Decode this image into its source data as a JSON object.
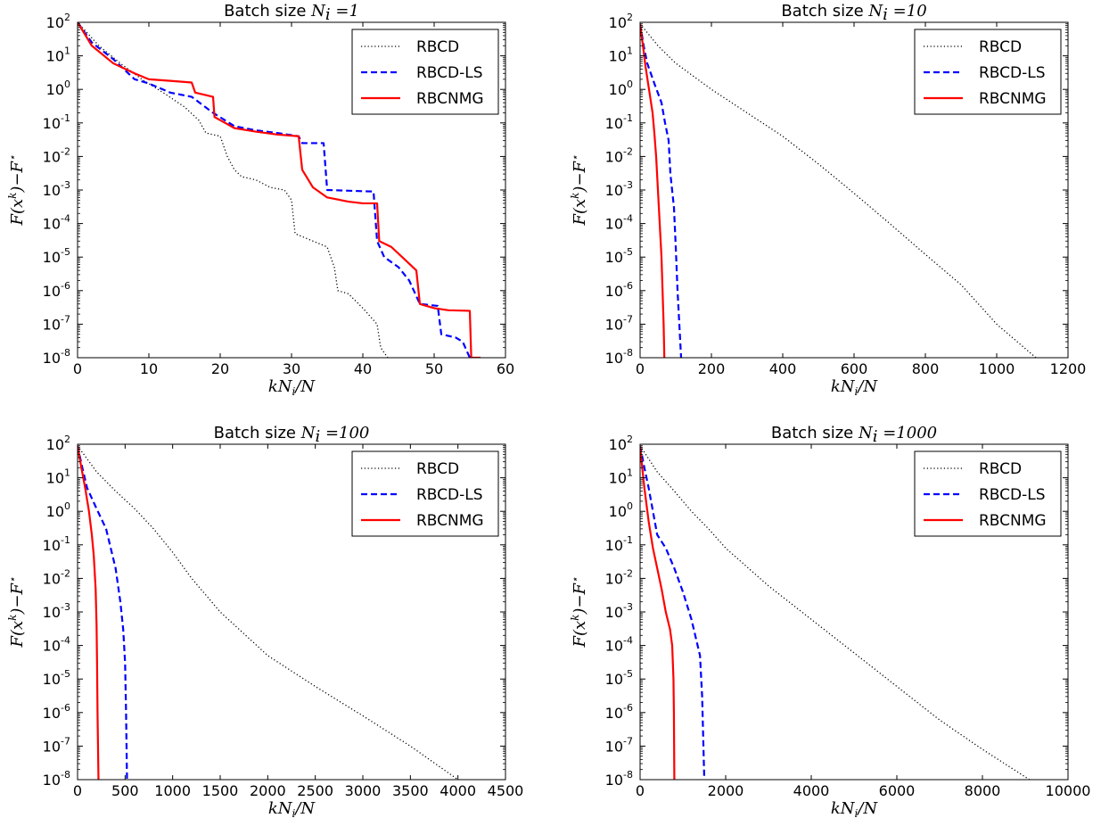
{
  "chart_data": [
    {
      "type": "line",
      "title": "Batch size",
      "title_math": "Ni=1",
      "xlabel": "kNi/N",
      "ylabel": "F(x^k)-F*",
      "xlim": [
        0,
        60
      ],
      "ylim_exp": [
        -8,
        2
      ],
      "yscale": "log",
      "xticks": [
        "0",
        "10",
        "20",
        "30",
        "40",
        "50",
        "60"
      ],
      "xtick_values": [
        0,
        10,
        20,
        30,
        40,
        50,
        60
      ],
      "legend_position": "top-right",
      "series": [
        {
          "name": "RBCD",
          "style": "dotted",
          "color": "#000000",
          "points": [
            [
              0,
              100
            ],
            [
              3,
              20
            ],
            [
              6,
              6
            ],
            [
              9,
              2
            ],
            [
              12,
              0.8
            ],
            [
              15,
              0.3
            ],
            [
              17,
              0.12
            ],
            [
              18,
              0.05
            ],
            [
              20,
              0.04
            ],
            [
              21,
              0.01
            ],
            [
              22,
              0.004
            ],
            [
              23,
              0.0025
            ],
            [
              25,
              0.002
            ],
            [
              27,
              0.0012
            ],
            [
              29,
              0.001
            ],
            [
              30,
              0.0005
            ],
            [
              30.5,
              5e-05
            ],
            [
              33,
              3e-05
            ],
            [
              35,
              2e-05
            ],
            [
              36,
              5e-06
            ],
            [
              36.5,
              1e-06
            ],
            [
              38,
              8e-07
            ],
            [
              40,
              3e-07
            ],
            [
              42,
              1e-07
            ],
            [
              42.5,
              2e-08
            ],
            [
              43.5,
              1e-08
            ]
          ]
        },
        {
          "name": "RBCD-LS",
          "style": "dashed",
          "color": "#0000ff",
          "points": [
            [
              0,
              100
            ],
            [
              2,
              25
            ],
            [
              5,
              8
            ],
            [
              8,
              2
            ],
            [
              10,
              1.5
            ],
            [
              13,
              0.8
            ],
            [
              16,
              0.6
            ],
            [
              19,
              0.2
            ],
            [
              22,
              0.08
            ],
            [
              25,
              0.06
            ],
            [
              28,
              0.05
            ],
            [
              31,
              0.04
            ],
            [
              31.5,
              0.025
            ],
            [
              34.5,
              0.025
            ],
            [
              35,
              0.001
            ],
            [
              41.5,
              0.0009
            ],
            [
              42,
              3e-05
            ],
            [
              43,
              1e-05
            ],
            [
              45,
              5e-06
            ],
            [
              46.5,
              2e-06
            ],
            [
              48,
              4e-07
            ],
            [
              50.5,
              3.5e-07
            ],
            [
              51,
              5e-08
            ],
            [
              53,
              4e-08
            ],
            [
              54,
              3e-08
            ],
            [
              55,
              1e-08
            ]
          ]
        },
        {
          "name": "RBCNMG",
          "style": "solid",
          "color": "#ff0000",
          "points": [
            [
              0,
              100
            ],
            [
              2,
              20
            ],
            [
              5,
              6
            ],
            [
              8,
              3
            ],
            [
              10,
              2
            ],
            [
              13,
              1.8
            ],
            [
              16,
              1.6
            ],
            [
              16.5,
              0.8
            ],
            [
              19,
              0.6
            ],
            [
              19.2,
              0.15
            ],
            [
              22,
              0.07
            ],
            [
              25,
              0.055
            ],
            [
              28,
              0.045
            ],
            [
              31,
              0.04
            ],
            [
              31.5,
              0.004
            ],
            [
              33,
              0.0012
            ],
            [
              35,
              0.0006
            ],
            [
              38,
              0.00045
            ],
            [
              40,
              0.0004
            ],
            [
              42,
              0.0004
            ],
            [
              42.3,
              3e-05
            ],
            [
              44,
              2e-05
            ],
            [
              46,
              8e-06
            ],
            [
              47.5,
              4e-06
            ],
            [
              48,
              4e-07
            ],
            [
              50,
              3e-07
            ],
            [
              52,
              2.6e-07
            ],
            [
              55,
              2.5e-07
            ],
            [
              55.2,
              1e-08
            ],
            [
              56.5,
              1e-08
            ]
          ]
        }
      ]
    },
    {
      "type": "line",
      "title": "Batch size",
      "title_math": "Ni=10",
      "xlabel": "kNi/N",
      "ylabel": "F(x^k)-F*",
      "xlim": [
        0,
        1200
      ],
      "ylim_exp": [
        -8,
        2
      ],
      "yscale": "log",
      "xticks": [
        "0",
        "200",
        "400",
        "600",
        "800",
        "1000",
        "1200"
      ],
      "xtick_values": [
        0,
        200,
        400,
        600,
        800,
        1000,
        1200
      ],
      "legend_position": "top-right",
      "series": [
        {
          "name": "RBCD",
          "style": "dotted",
          "color": "#000000",
          "points": [
            [
              0,
              90
            ],
            [
              50,
              20
            ],
            [
              100,
              6
            ],
            [
              200,
              1
            ],
            [
              300,
              0.2
            ],
            [
              400,
              0.04
            ],
            [
              500,
              0.006
            ],
            [
              600,
              0.0008
            ],
            [
              700,
              0.0001
            ],
            [
              800,
              1.2e-05
            ],
            [
              900,
              1.5e-06
            ],
            [
              1000,
              1e-07
            ],
            [
              1110,
              1e-08
            ]
          ]
        },
        {
          "name": "RBCD-LS",
          "style": "dashed",
          "color": "#0000ff",
          "points": [
            [
              0,
              90
            ],
            [
              10,
              20
            ],
            [
              20,
              6
            ],
            [
              40,
              1.5
            ],
            [
              60,
              0.4
            ],
            [
              70,
              0.1
            ],
            [
              80,
              0.03
            ],
            [
              85,
              0.003
            ],
            [
              95,
              0.0003
            ],
            [
              100,
              2e-05
            ],
            [
              105,
              1e-06
            ],
            [
              110,
              1e-07
            ],
            [
              115,
              1e-08
            ]
          ]
        },
        {
          "name": "RBCNMG",
          "style": "solid",
          "color": "#ff0000",
          "points": [
            [
              0,
              90
            ],
            [
              8,
              20
            ],
            [
              15,
              5
            ],
            [
              25,
              1
            ],
            [
              35,
              0.2
            ],
            [
              40,
              0.05
            ],
            [
              45,
              0.01
            ],
            [
              50,
              0.001
            ],
            [
              55,
              0.0001
            ],
            [
              60,
              1e-05
            ],
            [
              63,
              1e-06
            ],
            [
              66,
              1e-07
            ],
            [
              68,
              1e-08
            ]
          ]
        }
      ]
    },
    {
      "type": "line",
      "title": "Batch size",
      "title_math": "Ni=100",
      "xlabel": "kNi/N",
      "ylabel": "F(x^k)-F*",
      "xlim": [
        0,
        4500
      ],
      "ylim_exp": [
        -8,
        2
      ],
      "yscale": "log",
      "xticks": [
        "0",
        "500",
        "1000",
        "1500",
        "2000",
        "2500",
        "3000",
        "3500",
        "4000",
        "4500"
      ],
      "xtick_values": [
        0,
        500,
        1000,
        1500,
        2000,
        2500,
        3000,
        3500,
        4000,
        4500
      ],
      "legend_position": "top-right",
      "series": [
        {
          "name": "RBCD",
          "style": "dotted",
          "color": "#000000",
          "points": [
            [
              0,
              90
            ],
            [
              200,
              15
            ],
            [
              400,
              4
            ],
            [
              600,
              1.2
            ],
            [
              800,
              0.3
            ],
            [
              1000,
              0.06
            ],
            [
              1200,
              0.01
            ],
            [
              1500,
              0.001
            ],
            [
              2000,
              5e-05
            ],
            [
              2500,
              6e-06
            ],
            [
              3000,
              8e-07
            ],
            [
              3500,
              1e-07
            ],
            [
              4000,
              1e-08
            ]
          ]
        },
        {
          "name": "RBCD-LS",
          "style": "dashed",
          "color": "#0000ff",
          "points": [
            [
              0,
              90
            ],
            [
              50,
              20
            ],
            [
              100,
              5
            ],
            [
              200,
              1.2
            ],
            [
              300,
              0.3
            ],
            [
              400,
              0.02
            ],
            [
              450,
              0.002
            ],
            [
              480,
              0.0003
            ],
            [
              500,
              3e-05
            ],
            [
              510,
              1e-06
            ],
            [
              515,
              1e-07
            ],
            [
              520,
              1e-08
            ]
          ]
        },
        {
          "name": "RBCNMG",
          "style": "solid",
          "color": "#ff0000",
          "points": [
            [
              0,
              90
            ],
            [
              40,
              20
            ],
            [
              80,
              5
            ],
            [
              120,
              1
            ],
            [
              150,
              0.2
            ],
            [
              170,
              0.05
            ],
            [
              190,
              0.005
            ],
            [
              200,
              0.0004
            ],
            [
              205,
              3e-05
            ],
            [
              210,
              1e-06
            ],
            [
              215,
              1e-07
            ],
            [
              220,
              1e-08
            ]
          ]
        }
      ]
    },
    {
      "type": "line",
      "title": "Batch size",
      "title_math": "Ni=1000",
      "xlabel": "kNi/N",
      "ylabel": "F(x^k)-F*",
      "xlim": [
        0,
        10000
      ],
      "ylim_exp": [
        -8,
        2
      ],
      "yscale": "log",
      "xticks": [
        "0",
        "2000",
        "4000",
        "6000",
        "8000",
        "10000"
      ],
      "xtick_values": [
        0,
        2000,
        4000,
        6000,
        8000,
        10000
      ],
      "legend_position": "top-right",
      "series": [
        {
          "name": "RBCD",
          "style": "dotted",
          "color": "#000000",
          "points": [
            [
              0,
              90
            ],
            [
              400,
              15
            ],
            [
              800,
              4
            ],
            [
              1200,
              1
            ],
            [
              1600,
              0.3
            ],
            [
              2000,
              0.08
            ],
            [
              3000,
              0.006
            ],
            [
              4000,
              0.0006
            ],
            [
              5000,
              6e-05
            ],
            [
              6000,
              6e-06
            ],
            [
              7000,
              6e-07
            ],
            [
              8000,
              8e-08
            ],
            [
              9100,
              1e-08
            ]
          ]
        },
        {
          "name": "RBCD-LS",
          "style": "dashed",
          "color": "#0000ff",
          "points": [
            [
              0,
              90
            ],
            [
              100,
              20
            ],
            [
              200,
              5
            ],
            [
              300,
              1
            ],
            [
              400,
              0.2
            ],
            [
              600,
              0.08
            ],
            [
              800,
              0.02
            ],
            [
              1000,
              0.004
            ],
            [
              1200,
              0.0006
            ],
            [
              1400,
              5e-05
            ],
            [
              1450,
              3e-06
            ],
            [
              1480,
              1e-07
            ],
            [
              1500,
              1e-08
            ]
          ]
        },
        {
          "name": "RBCNMG",
          "style": "solid",
          "color": "#ff0000",
          "points": [
            [
              0,
              90
            ],
            [
              50,
              20
            ],
            [
              100,
              5
            ],
            [
              200,
              0.5
            ],
            [
              300,
              0.08
            ],
            [
              400,
              0.02
            ],
            [
              500,
              0.005
            ],
            [
              600,
              0.001
            ],
            [
              700,
              0.0003
            ],
            [
              750,
              0.0001
            ],
            [
              780,
              1e-05
            ],
            [
              790,
              1e-06
            ],
            [
              800,
              1e-08
            ]
          ]
        }
      ]
    }
  ]
}
